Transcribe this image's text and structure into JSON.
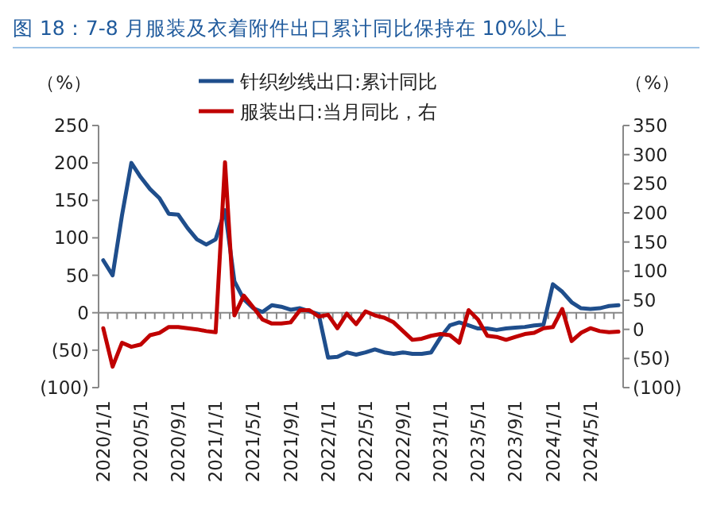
{
  "chart_data": {
    "type": "line",
    "title": "图 18：7-8 月服装及衣着附件出口累计同比保持在 10%以上",
    "ylabel": "（%）",
    "y2label": "（%）",
    "categories": [
      "2020/1/1",
      null,
      null,
      null,
      "2020/5/1",
      null,
      null,
      null,
      "2020/9/1",
      null,
      null,
      null,
      "2021/1/1",
      null,
      null,
      null,
      "2021/5/1",
      null,
      null,
      null,
      "2021/9/1",
      null,
      null,
      null,
      "2022/1/1",
      null,
      null,
      null,
      "2022/5/1",
      null,
      null,
      null,
      "2022/9/1",
      null,
      null,
      null,
      "2023/1/1",
      null,
      null,
      null,
      "2023/5/1",
      null,
      null,
      null,
      "2023/9/1",
      null,
      null,
      null,
      "2024/1/1",
      null,
      null,
      null,
      "2024/5/1",
      null,
      null,
      null
    ],
    "series": [
      {
        "name": "针织纱线出口:累计同比",
        "color": "#1f4e8c",
        "values": [
          70,
          50,
          130,
          200,
          181,
          165,
          153,
          132,
          131,
          113,
          98,
          91,
          98,
          137,
          42,
          18,
          6,
          1,
          10,
          8,
          4,
          6,
          2,
          -2,
          -60,
          -59,
          -53,
          -56,
          -53,
          -49,
          -53,
          -55,
          -53,
          -55,
          -55,
          -53,
          -33,
          -17,
          -13,
          -17,
          -21,
          -21,
          -23,
          -21,
          -20,
          -19,
          -17,
          -16,
          38,
          28,
          14,
          6,
          5,
          6,
          9,
          10
        ]
      },
      {
        "name": "服装出口:当月同比，右",
        "color": "#c00000",
        "axis": "y2",
        "values": [
          2,
          -64,
          -23,
          -30,
          -26,
          -10,
          -6,
          4,
          4,
          2,
          0,
          -3,
          -5,
          287,
          24,
          58,
          38,
          17,
          10,
          10,
          12,
          33,
          33,
          22,
          25,
          2,
          27,
          9,
          31,
          24,
          20,
          12,
          -3,
          -18,
          -16,
          -11,
          -8,
          -10,
          -23,
          33,
          17,
          -11,
          -13,
          -18,
          -13,
          -8,
          -6,
          2,
          4,
          35,
          -20,
          -6,
          2,
          -3,
          -5,
          -4
        ]
      }
    ],
    "ylim": [
      -100,
      250
    ],
    "yticks": [
      {
        "value": -100,
        "label": "(100)"
      },
      {
        "value": -50,
        "label": "(50)"
      },
      0,
      50,
      100,
      150,
      200,
      250
    ],
    "y2lim": [
      -100,
      350
    ],
    "y2ticks": [
      {
        "value": -100,
        "label": "(100)"
      },
      {
        "value": -50,
        "label": "(50)"
      },
      0,
      50,
      100,
      150,
      200,
      250,
      300,
      350
    ],
    "legend": "top"
  }
}
